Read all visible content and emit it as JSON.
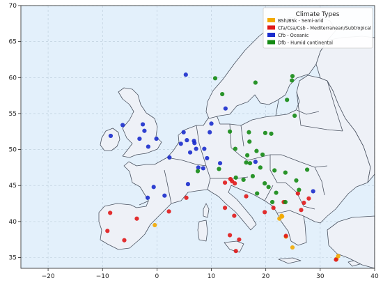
{
  "chart_data": {
    "type": "scatter",
    "title": "",
    "xlabel": "",
    "ylabel": "",
    "xlim": [
      -25,
      40
    ],
    "ylim": [
      33.5,
      70
    ],
    "xticks": [
      -20,
      -10,
      0,
      10,
      20,
      30,
      40
    ],
    "yticks": [
      35,
      40,
      45,
      50,
      55,
      60,
      65,
      70
    ],
    "grid": true,
    "basemap": "Europe country borders",
    "colors": {
      "ocean": "#e3f0fb",
      "land": "#eef1f7",
      "border": "#4a5260",
      "grid": "#b9c9d8"
    },
    "legend": {
      "title": "Climate Types",
      "placement": "top-right"
    },
    "series": [
      {
        "name": "BSh/BSk - Semi-arid",
        "color": "#f2a900",
        "points": [
          [
            -0.4,
            39.5
          ],
          [
            22.5,
            40.4
          ],
          [
            23.0,
            40.7
          ],
          [
            22.9,
            40.8
          ],
          [
            23.7,
            37.9
          ],
          [
            24.9,
            36.4
          ],
          [
            33.0,
            34.8
          ],
          [
            33.3,
            35.2
          ]
        ]
      },
      {
        "name": "Cfa/Csa/Csb - Mediterranean/Subtropical",
        "color": "#e01818",
        "points": [
          [
            -8.6,
            41.2
          ],
          [
            -9.1,
            38.7
          ],
          [
            -6.0,
            37.4
          ],
          [
            -3.7,
            40.4
          ],
          [
            2.2,
            41.4
          ],
          [
            5.4,
            43.3
          ],
          [
            12.5,
            45.4
          ],
          [
            13.5,
            45.9
          ],
          [
            13.8,
            45.6
          ],
          [
            14.3,
            45.3
          ],
          [
            16.4,
            43.5
          ],
          [
            12.5,
            41.9
          ],
          [
            14.2,
            40.8
          ],
          [
            13.4,
            38.1
          ],
          [
            15.1,
            37.5
          ],
          [
            14.5,
            35.9
          ],
          [
            19.8,
            41.3
          ],
          [
            21.4,
            41.9
          ],
          [
            23.3,
            42.7
          ],
          [
            25.9,
            43.9
          ],
          [
            27.0,
            42.6
          ],
          [
            27.9,
            43.2
          ],
          [
            26.5,
            41.6
          ],
          [
            23.7,
            38.0
          ],
          [
            32.9,
            34.7
          ]
        ]
      },
      {
        "name": "Cfb - Oceanic",
        "color": "#1a2ccc",
        "points": [
          [
            -8.5,
            51.9
          ],
          [
            -6.3,
            53.4
          ],
          [
            -2.6,
            53.5
          ],
          [
            -2.3,
            52.6
          ],
          [
            -3.2,
            51.5
          ],
          [
            -1.6,
            50.4
          ],
          [
            -0.1,
            51.5
          ],
          [
            2.3,
            48.9
          ],
          [
            4.4,
            50.8
          ],
          [
            4.9,
            52.4
          ],
          [
            5.5,
            51.3
          ],
          [
            6.1,
            49.6
          ],
          [
            6.8,
            51.2
          ],
          [
            6.9,
            50.9
          ],
          [
            7.2,
            50.1
          ],
          [
            8.7,
            50.1
          ],
          [
            9.2,
            48.8
          ],
          [
            9.7,
            52.4
          ],
          [
            10.0,
            53.6
          ],
          [
            12.6,
            55.7
          ],
          [
            8.5,
            47.4
          ],
          [
            7.6,
            47.5
          ],
          [
            11.6,
            48.1
          ],
          [
            5.7,
            45.2
          ],
          [
            1.4,
            43.6
          ],
          [
            -1.7,
            43.3
          ],
          [
            -0.6,
            44.8
          ],
          [
            5.3,
            60.4
          ],
          [
            18.1,
            48.3
          ],
          [
            28.7,
            44.2
          ]
        ]
      },
      {
        "name": "Dfb - Humid continental",
        "color": "#138a13",
        "points": [
          [
            10.7,
            59.9
          ],
          [
            18.1,
            59.3
          ],
          [
            24.9,
            60.2
          ],
          [
            24.8,
            59.6
          ],
          [
            23.9,
            56.9
          ],
          [
            25.3,
            54.7
          ],
          [
            12.0,
            57.7
          ],
          [
            13.4,
            52.5
          ],
          [
            16.9,
            52.4
          ],
          [
            19.9,
            52.3
          ],
          [
            21.0,
            52.2
          ],
          [
            14.4,
            50.1
          ],
          [
            17.0,
            51.1
          ],
          [
            16.6,
            49.2
          ],
          [
            18.3,
            49.8
          ],
          [
            19.4,
            49.3
          ],
          [
            16.4,
            48.2
          ],
          [
            17.1,
            48.1
          ],
          [
            19.0,
            47.5
          ],
          [
            21.6,
            47.1
          ],
          [
            11.4,
            47.3
          ],
          [
            7.5,
            47.0
          ],
          [
            14.5,
            46.1
          ],
          [
            15.9,
            45.8
          ],
          [
            17.6,
            46.3
          ],
          [
            20.5,
            44.8
          ],
          [
            21.9,
            44.0
          ],
          [
            18.4,
            43.9
          ],
          [
            19.8,
            45.3
          ],
          [
            23.6,
            46.8
          ],
          [
            26.1,
            44.4
          ],
          [
            25.6,
            45.7
          ],
          [
            27.6,
            47.2
          ],
          [
            23.6,
            42.7
          ],
          [
            21.2,
            42.7
          ]
        ]
      }
    ]
  }
}
